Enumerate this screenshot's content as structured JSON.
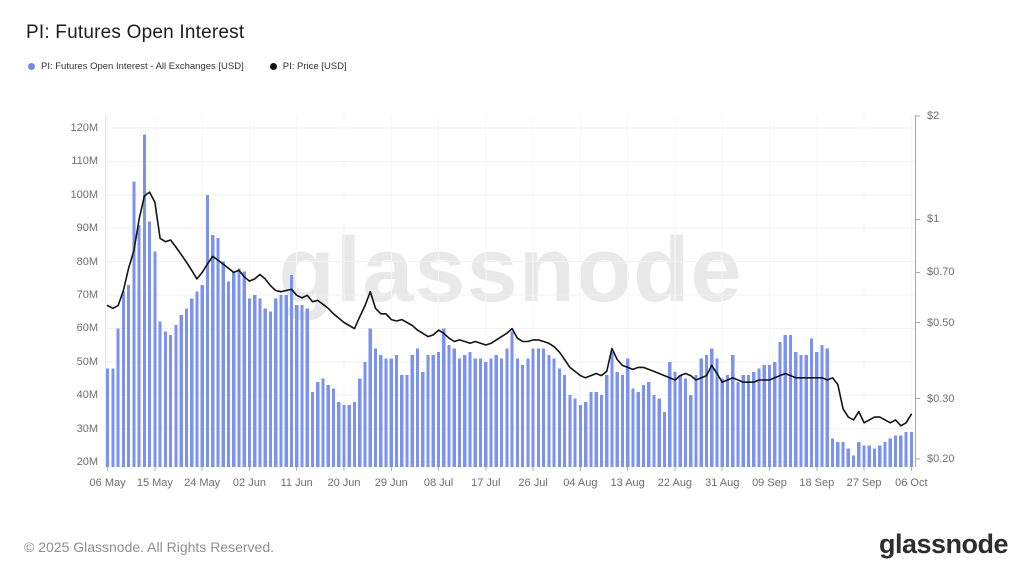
{
  "header": {
    "title": "PI: Futures Open Interest"
  },
  "legend": [
    {
      "label": "PI: Futures Open Interest - All Exchanges [USD]",
      "color": "#6d8cf0"
    },
    {
      "label": "PI: Price [USD]",
      "color": "#111111"
    }
  ],
  "watermark": "glassnode",
  "footer": {
    "copyright": "© 2025 Glassnode. All Rights Reserved.",
    "logo_text": "glassnode"
  },
  "colors": {
    "bar": "#7b92ef",
    "line": "#141414",
    "grid_horizontal": "#f1f1f1",
    "grid_vertical": "#f7f7f7",
    "axis_line": "#a9a9a9",
    "axis_text": "#6e6e6e",
    "watermark": "#e9e9e9"
  },
  "chart_data": {
    "type": "bar+line",
    "title": "PI: Futures Open Interest",
    "x_start": "06 May",
    "x_end": "06 Oct",
    "frequency": "daily",
    "x_tick_labels": [
      "06 May",
      "15 May",
      "24 May",
      "02 Jun",
      "11 Jun",
      "20 Jun",
      "29 Jun",
      "08 Jul",
      "17 Jul",
      "26 Jul",
      "04 Aug",
      "13 Aug",
      "22 Aug",
      "31 Aug",
      "09 Sep",
      "18 Sep",
      "27 Sep",
      "06 Oct"
    ],
    "left_axis": {
      "unit": "USD (millions)",
      "ticks": [
        "20M",
        "30M",
        "40M",
        "50M",
        "60M",
        "70M",
        "80M",
        "90M",
        "100M",
        "110M",
        "120M"
      ],
      "tick_values": [
        20,
        30,
        40,
        50,
        60,
        70,
        80,
        90,
        100,
        110,
        120
      ],
      "scale": "linear"
    },
    "right_axis": {
      "unit": "USD",
      "ticks": [
        "$2",
        "$1",
        "$0.70",
        "$0.50",
        "$0.30",
        "$0.20"
      ],
      "tick_values": [
        2,
        1,
        0.7,
        0.5,
        0.3,
        0.2
      ],
      "scale": "log"
    },
    "grid": "horizontal+vertical-ticks",
    "legend_position": "top-left",
    "series": [
      {
        "name": "PI: Futures Open Interest - All Exchanges [USD]",
        "type": "bar",
        "axis": "left",
        "unit": "M USD",
        "color": "#7b92ef",
        "values": [
          48,
          48,
          60,
          71,
          73,
          104,
          91,
          118,
          92,
          83,
          62,
          59,
          58,
          61,
          64,
          66,
          69,
          71,
          73,
          100,
          88,
          87,
          80,
          74,
          77,
          78,
          77,
          69,
          70,
          69,
          66,
          65,
          69,
          70,
          70,
          76,
          67,
          67,
          66,
          41,
          44,
          45,
          43,
          42,
          38,
          37,
          37,
          38,
          45,
          50,
          60,
          54,
          52,
          51,
          51,
          52,
          46,
          46,
          52,
          54,
          47,
          52,
          52,
          53,
          60,
          55,
          54,
          51,
          52,
          53,
          51,
          51,
          50,
          51,
          52,
          51,
          54,
          59,
          51,
          49,
          51,
          54,
          54,
          54,
          52,
          51,
          48,
          46,
          40,
          39,
          37,
          38,
          41,
          41,
          40,
          46,
          53,
          47,
          46,
          51,
          42,
          41,
          43,
          44,
          40,
          39,
          35,
          50,
          47,
          46,
          45,
          40,
          46,
          51,
          52,
          54,
          51,
          45,
          46,
          52,
          44,
          46,
          46,
          47,
          48,
          49,
          49,
          50,
          56,
          58,
          58,
          53,
          52,
          52,
          57,
          53,
          55,
          54,
          27,
          26,
          26,
          24,
          22,
          26,
          25,
          25,
          24,
          25,
          26,
          27,
          28,
          28,
          29,
          29
        ]
      },
      {
        "name": "PI: Price [USD]",
        "type": "line",
        "axis": "right",
        "unit": "USD",
        "color": "#141414",
        "values": [
          0.56,
          0.55,
          0.56,
          0.62,
          0.72,
          0.81,
          1.0,
          1.17,
          1.2,
          1.12,
          0.88,
          0.86,
          0.87,
          0.83,
          0.79,
          0.75,
          0.71,
          0.67,
          0.7,
          0.74,
          0.78,
          0.76,
          0.74,
          0.72,
          0.7,
          0.71,
          0.68,
          0.66,
          0.67,
          0.69,
          0.67,
          0.64,
          0.62,
          0.615,
          0.62,
          0.625,
          0.6,
          0.59,
          0.6,
          0.575,
          0.58,
          0.565,
          0.55,
          0.53,
          0.515,
          0.5,
          0.49,
          0.48,
          0.52,
          0.56,
          0.615,
          0.55,
          0.53,
          0.53,
          0.51,
          0.505,
          0.51,
          0.5,
          0.49,
          0.475,
          0.465,
          0.455,
          0.46,
          0.475,
          0.465,
          0.45,
          0.44,
          0.445,
          0.44,
          0.435,
          0.44,
          0.435,
          0.43,
          0.435,
          0.445,
          0.455,
          0.465,
          0.48,
          0.45,
          0.44,
          0.44,
          0.445,
          0.445,
          0.44,
          0.435,
          0.425,
          0.41,
          0.39,
          0.37,
          0.36,
          0.35,
          0.345,
          0.35,
          0.355,
          0.35,
          0.36,
          0.42,
          0.39,
          0.375,
          0.37,
          0.365,
          0.37,
          0.37,
          0.365,
          0.36,
          0.355,
          0.35,
          0.345,
          0.34,
          0.35,
          0.355,
          0.35,
          0.34,
          0.345,
          0.35,
          0.375,
          0.355,
          0.335,
          0.34,
          0.345,
          0.34,
          0.335,
          0.335,
          0.335,
          0.34,
          0.34,
          0.34,
          0.345,
          0.35,
          0.355,
          0.35,
          0.345,
          0.345,
          0.345,
          0.345,
          0.345,
          0.345,
          0.34,
          0.345,
          0.33,
          0.28,
          0.265,
          0.26,
          0.275,
          0.255,
          0.26,
          0.265,
          0.265,
          0.26,
          0.255,
          0.26,
          0.25,
          0.255,
          0.27
        ]
      }
    ]
  }
}
